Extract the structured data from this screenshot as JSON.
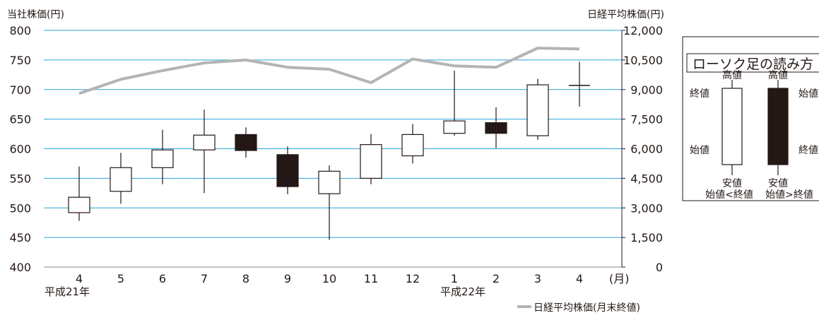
{
  "chart_data": {
    "type": "candlestick",
    "left_axis_title": "当社株価(円)",
    "right_axis_title": "日経平均株価(円)",
    "left_ticks": [
      "800",
      "750",
      "700",
      "650",
      "600",
      "550",
      "500",
      "450",
      "400"
    ],
    "right_ticks": [
      "12,000",
      "10,500",
      "9,000",
      "7,500",
      "6,000",
      "4,500",
      "3,000",
      "1,500",
      "0"
    ],
    "ylim_left": [
      400,
      800
    ],
    "ylim_right": [
      0,
      12000
    ],
    "x_unit": "(月)",
    "year_labels": [
      "平成21年",
      "平成22年"
    ],
    "categories": [
      "4",
      "5",
      "6",
      "7",
      "8",
      "9",
      "10",
      "11",
      "12",
      "1",
      "2",
      "3",
      "4"
    ],
    "candles": [
      {
        "open": 492,
        "high": 570,
        "low": 478,
        "close": 518
      },
      {
        "open": 528,
        "high": 593,
        "low": 507,
        "close": 568
      },
      {
        "open": 568,
        "high": 632,
        "low": 540,
        "close": 598
      },
      {
        "open": 598,
        "high": 666,
        "low": 525,
        "close": 623
      },
      {
        "open": 624,
        "high": 636,
        "low": 585,
        "close": 597
      },
      {
        "open": 590,
        "high": 604,
        "low": 523,
        "close": 536
      },
      {
        "open": 524,
        "high": 572,
        "low": 446,
        "close": 562
      },
      {
        "open": 550,
        "high": 625,
        "low": 540,
        "close": 607
      },
      {
        "open": 588,
        "high": 642,
        "low": 575,
        "close": 624
      },
      {
        "open": 626,
        "high": 732,
        "low": 622,
        "close": 647
      },
      {
        "open": 644,
        "high": 670,
        "low": 601,
        "close": 626
      },
      {
        "open": 622,
        "high": 718,
        "low": 615,
        "close": 708
      },
      {
        "open": 707,
        "high": 747,
        "low": 671,
        "close": 707
      }
    ],
    "nikkei_line": {
      "name": "日経平均株価(月末終値)",
      "values": [
        8800,
        9520,
        9960,
        10350,
        10500,
        10130,
        10030,
        9350,
        10550,
        10200,
        10130,
        11100,
        11060
      ]
    },
    "legend_box": {
      "title": "ローソク足の読み方",
      "white_candle": {
        "top": "高値",
        "upper": "終値",
        "lower": "始値",
        "bottom": "安値",
        "caption": "始値<終値"
      },
      "black_candle": {
        "top": "高値",
        "upper": "始値",
        "lower": "終値",
        "bottom": "安値",
        "caption": "始値>終値"
      }
    },
    "colors": {
      "grid": "#29a3d8",
      "line": "#b4b4b4",
      "black_candle": "#231815",
      "white_candle": "#ffffff",
      "text": "#231815"
    }
  }
}
